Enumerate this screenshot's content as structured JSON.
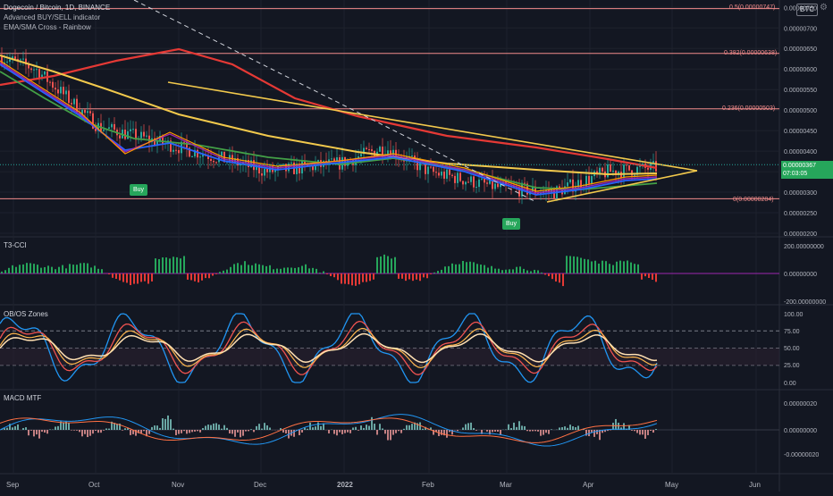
{
  "header": {
    "symbol_line": "Dogecoin / Bitcoin, 1D, BINANCE",
    "indicator_1": "Advanced BUY/SELL indicator",
    "indicator_2": "EMA/SMA Cross - Rainbow"
  },
  "currency_badge": "BTC",
  "price_tag": {
    "price": "0.00000367",
    "countdown": "07:03:05"
  },
  "buy_signals": [
    "Buy",
    "Buy"
  ],
  "fib_levels": [
    {
      "label": "0.5(0.00000747)",
      "value": 7.47e-06
    },
    {
      "label": "0.382(0.00000638)",
      "value": 6.38e-06
    },
    {
      "label": "0.236(0.00000503)",
      "value": 5.03e-06
    },
    {
      "label": "0(0.00000284)",
      "value": 2.84e-06
    }
  ],
  "colors": {
    "background": "#131722",
    "grid": "#1e222d",
    "fib_line": "#f28b8b",
    "ema_fast": "#ff9800",
    "ma_yellow": "#f2c94c",
    "ma_red": "#e53935",
    "ma_green": "#43a047",
    "ma_blue": "#2962ff",
    "ma_purple": "#9c27b0",
    "candle_up": "#26a69a",
    "candle_down": "#ef5350",
    "cci_up": "#26a65b",
    "cci_down": "#e53935",
    "osc_red": "#ef5350",
    "osc_orange": "#ffb74d",
    "osc_blue": "#2196f3",
    "osc_white": "#ffe0b2"
  },
  "panes": {
    "t3cci": {
      "title": "T3-CCI",
      "ticks": [
        "200.00000000",
        "0.00000000",
        "-200.00000000"
      ]
    },
    "obos": {
      "title": "OB/OS Zones",
      "ticks": [
        "100.00",
        "75.00",
        "50.00",
        "25.00",
        "0.00"
      ]
    },
    "macd": {
      "title": "MACD MTF",
      "ticks": [
        "0.00000020",
        "0.00000000",
        "-0.00000020"
      ]
    }
  },
  "time_axis": [
    "Sep",
    "Oct",
    "Nov",
    "Dec",
    "2022",
    "Feb",
    "Mar",
    "Apr",
    "May",
    "Jun"
  ],
  "chart_data": {
    "type": "line",
    "title": "Dogecoin / Bitcoin, 1D, BINANCE",
    "xlabel": "",
    "ylabel": "",
    "y_ticks": [
      "0.00000750",
      "0.00000700",
      "0.00000650",
      "0.00000600",
      "0.00000550",
      "0.00000500",
      "0.00000450",
      "0.00000400",
      "0.00000350",
      "0.00000300",
      "0.00000250",
      "0.00000200"
    ],
    "ylim": [
      2e-06,
      7.55e-06
    ],
    "x": [
      "Sep",
      "Oct",
      "Nov",
      "Dec",
      "2022",
      "Feb",
      "Mar",
      "Apr"
    ],
    "series": [
      {
        "values": [
          6.3e-06,
          4.6e-06,
          4.1e-06,
          3.4e-06,
          3.7e-06,
          3.5e-06,
          2.9e-06,
          3.6e-06
        ]
      }
    ],
    "grid": true
  }
}
